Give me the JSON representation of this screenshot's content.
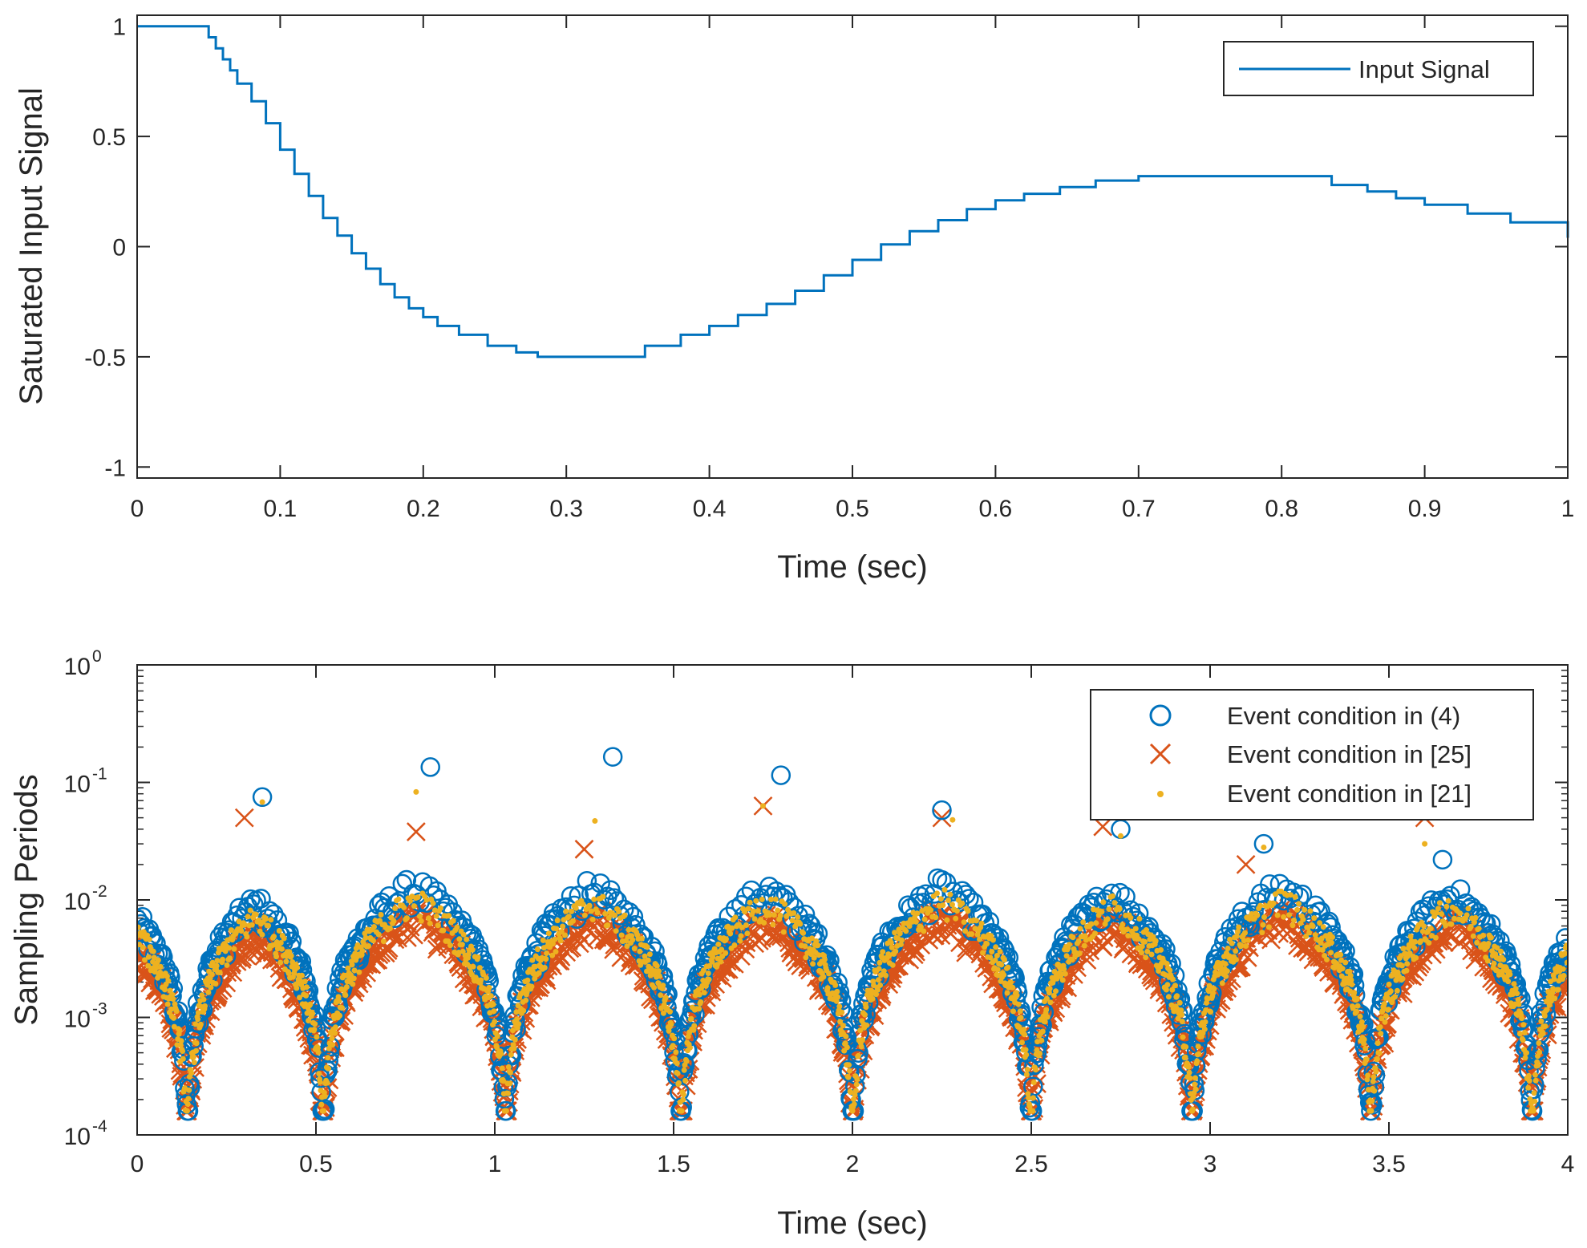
{
  "colors": {
    "blue": "#0072BD",
    "orange": "#D95319",
    "yellow": "#EDB120",
    "axis": "#262626"
  },
  "chart_data": [
    {
      "type": "line",
      "step": true,
      "xlabel": "Time (sec)",
      "ylabel": "Saturated Input Signal",
      "xlim": [
        0,
        1
      ],
      "ylim": [
        -1.05,
        1.05
      ],
      "xticks": [
        "0",
        "0.1",
        "0.2",
        "0.3",
        "0.4",
        "0.5",
        "0.6",
        "0.7",
        "0.8",
        "0.9",
        "1"
      ],
      "yticks": [
        "-1",
        "-0.5",
        "0",
        "0.5",
        "1"
      ],
      "grid": false,
      "legend": {
        "placement": "top-right",
        "entries": [
          "Input Signal"
        ]
      },
      "series": [
        {
          "name": "Input Signal",
          "color": "#0072BD",
          "points": [
            [
              0,
              1
            ],
            [
              0.046,
              1
            ],
            [
              0.05,
              0.95
            ],
            [
              0.055,
              0.9
            ],
            [
              0.06,
              0.85
            ],
            [
              0.065,
              0.8
            ],
            [
              0.07,
              0.74
            ],
            [
              0.08,
              0.66
            ],
            [
              0.09,
              0.56
            ],
            [
              0.1,
              0.44
            ],
            [
              0.11,
              0.33
            ],
            [
              0.12,
              0.23
            ],
            [
              0.13,
              0.13
            ],
            [
              0.14,
              0.05
            ],
            [
              0.15,
              -0.03
            ],
            [
              0.16,
              -0.1
            ],
            [
              0.17,
              -0.17
            ],
            [
              0.18,
              -0.23
            ],
            [
              0.19,
              -0.28
            ],
            [
              0.2,
              -0.32
            ],
            [
              0.21,
              -0.36
            ],
            [
              0.225,
              -0.4
            ],
            [
              0.245,
              -0.45
            ],
            [
              0.265,
              -0.48
            ],
            [
              0.28,
              -0.5
            ],
            [
              0.35,
              -0.5
            ],
            [
              0.355,
              -0.45
            ],
            [
              0.38,
              -0.4
            ],
            [
              0.4,
              -0.36
            ],
            [
              0.42,
              -0.31
            ],
            [
              0.44,
              -0.26
            ],
            [
              0.46,
              -0.2
            ],
            [
              0.48,
              -0.13
            ],
            [
              0.5,
              -0.06
            ],
            [
              0.52,
              0.01
            ],
            [
              0.54,
              0.07
            ],
            [
              0.56,
              0.12
            ],
            [
              0.58,
              0.17
            ],
            [
              0.6,
              0.21
            ],
            [
              0.62,
              0.24
            ],
            [
              0.645,
              0.27
            ],
            [
              0.67,
              0.3
            ],
            [
              0.7,
              0.32
            ],
            [
              0.83,
              0.32
            ],
            [
              0.835,
              0.28
            ],
            [
              0.86,
              0.25
            ],
            [
              0.88,
              0.22
            ],
            [
              0.9,
              0.19
            ],
            [
              0.93,
              0.15
            ],
            [
              0.96,
              0.11
            ],
            [
              1,
              0.04
            ]
          ]
        }
      ]
    },
    {
      "type": "scatter",
      "xlabel": "Time (sec)",
      "ylabel": "Sampling Periods",
      "xlim": [
        0,
        4
      ],
      "ylim": [
        0.0001,
        1
      ],
      "yscale": "log",
      "xticks": [
        "0",
        "0.5",
        "1",
        "1.5",
        "2",
        "2.5",
        "3",
        "3.5",
        "4"
      ],
      "yticks": [
        {
          "base": "10",
          "exp": "-4"
        },
        {
          "base": "10",
          "exp": "-3"
        },
        {
          "base": "10",
          "exp": "-2"
        },
        {
          "base": "10",
          "exp": "-1"
        },
        {
          "base": "10",
          "exp": "0"
        }
      ],
      "grid": false,
      "legend": {
        "placement": "top-right",
        "entries": [
          "Event condition in (4)",
          "Event condition in [25]",
          "Event condition in [21]"
        ]
      },
      "zero_crossings": [
        0.14,
        0.52,
        1.03,
        1.52,
        2.0,
        2.5,
        2.95,
        3.45,
        3.9
      ],
      "series": [
        {
          "name": "Event condition in (4)",
          "marker": "circle",
          "color": "#0072BD",
          "peaks": [
            [
              0.35,
              0.075
            ],
            [
              0.82,
              0.135
            ],
            [
              1.33,
              0.165
            ],
            [
              1.8,
              0.115
            ],
            [
              2.25,
              0.058
            ],
            [
              2.75,
              0.04
            ],
            [
              3.15,
              0.03
            ],
            [
              3.65,
              0.022
            ]
          ]
        },
        {
          "name": "Event condition in [25]",
          "marker": "x",
          "color": "#D95319",
          "peaks": [
            [
              0.3,
              0.05
            ],
            [
              0.78,
              0.038
            ],
            [
              1.25,
              0.027
            ],
            [
              1.75,
              0.063
            ],
            [
              2.25,
              0.05
            ],
            [
              2.7,
              0.042
            ],
            [
              3.1,
              0.02
            ],
            [
              3.6,
              0.05
            ]
          ]
        },
        {
          "name": "Event condition in [21]",
          "marker": "dot",
          "color": "#EDB120",
          "peaks": [
            [
              0.35,
              0.068
            ],
            [
              0.78,
              0.083
            ],
            [
              1.28,
              0.047
            ],
            [
              1.75,
              0.063
            ],
            [
              2.28,
              0.048
            ],
            [
              2.75,
              0.035
            ],
            [
              3.15,
              0.028
            ],
            [
              3.6,
              0.03
            ]
          ]
        }
      ]
    }
  ]
}
